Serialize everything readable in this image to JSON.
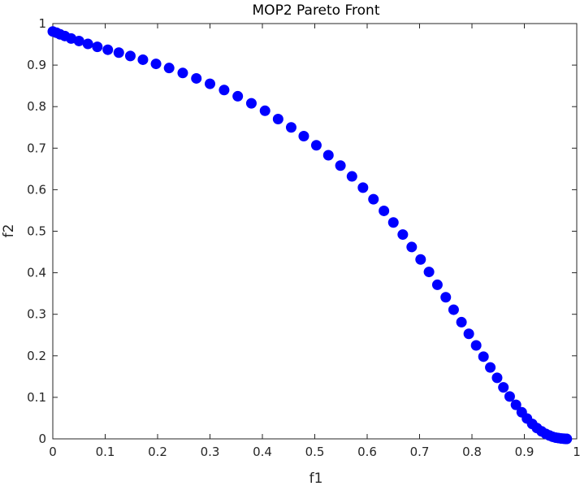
{
  "chart_data": {
    "type": "scatter",
    "title": "MOP2 Pareto Front",
    "xlabel": "f1",
    "ylabel": "f2",
    "xlim": [
      0,
      1
    ],
    "ylim": [
      0,
      1
    ],
    "xticks": [
      0,
      0.1,
      0.2,
      0.3,
      0.4,
      0.5,
      0.6,
      0.7,
      0.8,
      0.9,
      1
    ],
    "yticks": [
      0,
      0.1,
      0.2,
      0.3,
      0.4,
      0.5,
      0.6,
      0.7,
      0.8,
      0.9,
      1
    ],
    "xtick_labels": [
      "0",
      "0.1",
      "0.2",
      "0.3",
      "0.4",
      "0.5",
      "0.6",
      "0.7",
      "0.8",
      "0.9",
      "1"
    ],
    "ytick_labels": [
      "0",
      "0.1",
      "0.2",
      "0.3",
      "0.4",
      "0.5",
      "0.6",
      "0.7",
      "0.8",
      "0.9",
      "1"
    ],
    "grid": false,
    "box": true,
    "marker_color": "#0000ff",
    "axis_color": "#262626",
    "series": [
      {
        "x": [
          0.0,
          0.007,
          0.014,
          0.023,
          0.035,
          0.05,
          0.067,
          0.085,
          0.105,
          0.126,
          0.148,
          0.172,
          0.197,
          0.222,
          0.248,
          0.274,
          0.3,
          0.327,
          0.353,
          0.379,
          0.405,
          0.43,
          0.455,
          0.479,
          0.503,
          0.526,
          0.549,
          0.571,
          0.592,
          0.612,
          0.632,
          0.65,
          0.668,
          0.685,
          0.702,
          0.718,
          0.734,
          0.75,
          0.765,
          0.78,
          0.794,
          0.808,
          0.822,
          0.835,
          0.848,
          0.86,
          0.872,
          0.884,
          0.895,
          0.905,
          0.915,
          0.924,
          0.933,
          0.941,
          0.948,
          0.954,
          0.96,
          0.965,
          0.97,
          0.974,
          0.977,
          0.979,
          0.98,
          0.981
        ],
        "y": [
          0.981,
          0.978,
          0.974,
          0.97,
          0.964,
          0.958,
          0.951,
          0.944,
          0.937,
          0.93,
          0.922,
          0.913,
          0.903,
          0.893,
          0.881,
          0.868,
          0.855,
          0.84,
          0.825,
          0.808,
          0.79,
          0.77,
          0.75,
          0.729,
          0.707,
          0.683,
          0.658,
          0.632,
          0.605,
          0.577,
          0.549,
          0.521,
          0.492,
          0.462,
          0.432,
          0.402,
          0.371,
          0.341,
          0.311,
          0.281,
          0.253,
          0.225,
          0.198,
          0.172,
          0.147,
          0.124,
          0.102,
          0.082,
          0.064,
          0.049,
          0.036,
          0.026,
          0.018,
          0.012,
          0.008,
          0.005,
          0.003,
          0.002,
          0.001,
          0.0006,
          0.0003,
          0.0001,
          5e-05,
          0.0
        ]
      }
    ]
  }
}
